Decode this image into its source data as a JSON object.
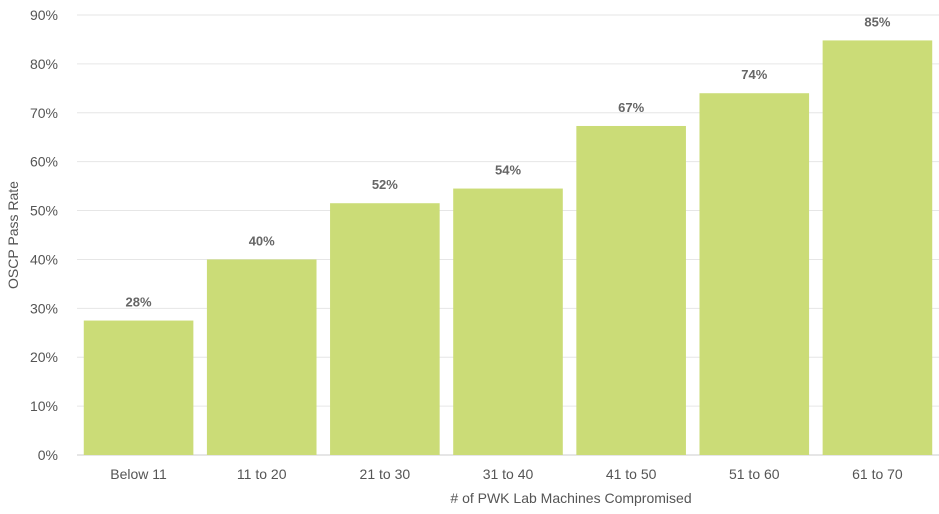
{
  "chart_data": {
    "type": "bar",
    "categories": [
      "Below 11",
      "11 to 20",
      "21 to 30",
      "31 to 40",
      "41 to 50",
      "51 to 60",
      "61 to 70"
    ],
    "values": [
      27.5,
      40,
      51.5,
      54.5,
      67.3,
      74,
      84.8
    ],
    "data_labels": [
      "28%",
      "40%",
      "52%",
      "54%",
      "67%",
      "74%",
      "85%"
    ],
    "xlabel": "# of PWK Lab Machines Compromised",
    "ylabel": "OSCP Pass Rate",
    "ylim": [
      0,
      90
    ],
    "yticks": [
      "0%",
      "10%",
      "20%",
      "30%",
      "40%",
      "50%",
      "60%",
      "70%",
      "80%",
      "90%"
    ],
    "grid": true,
    "bar_color": "#cbdc77",
    "grid_color": "#e6e6e6"
  }
}
